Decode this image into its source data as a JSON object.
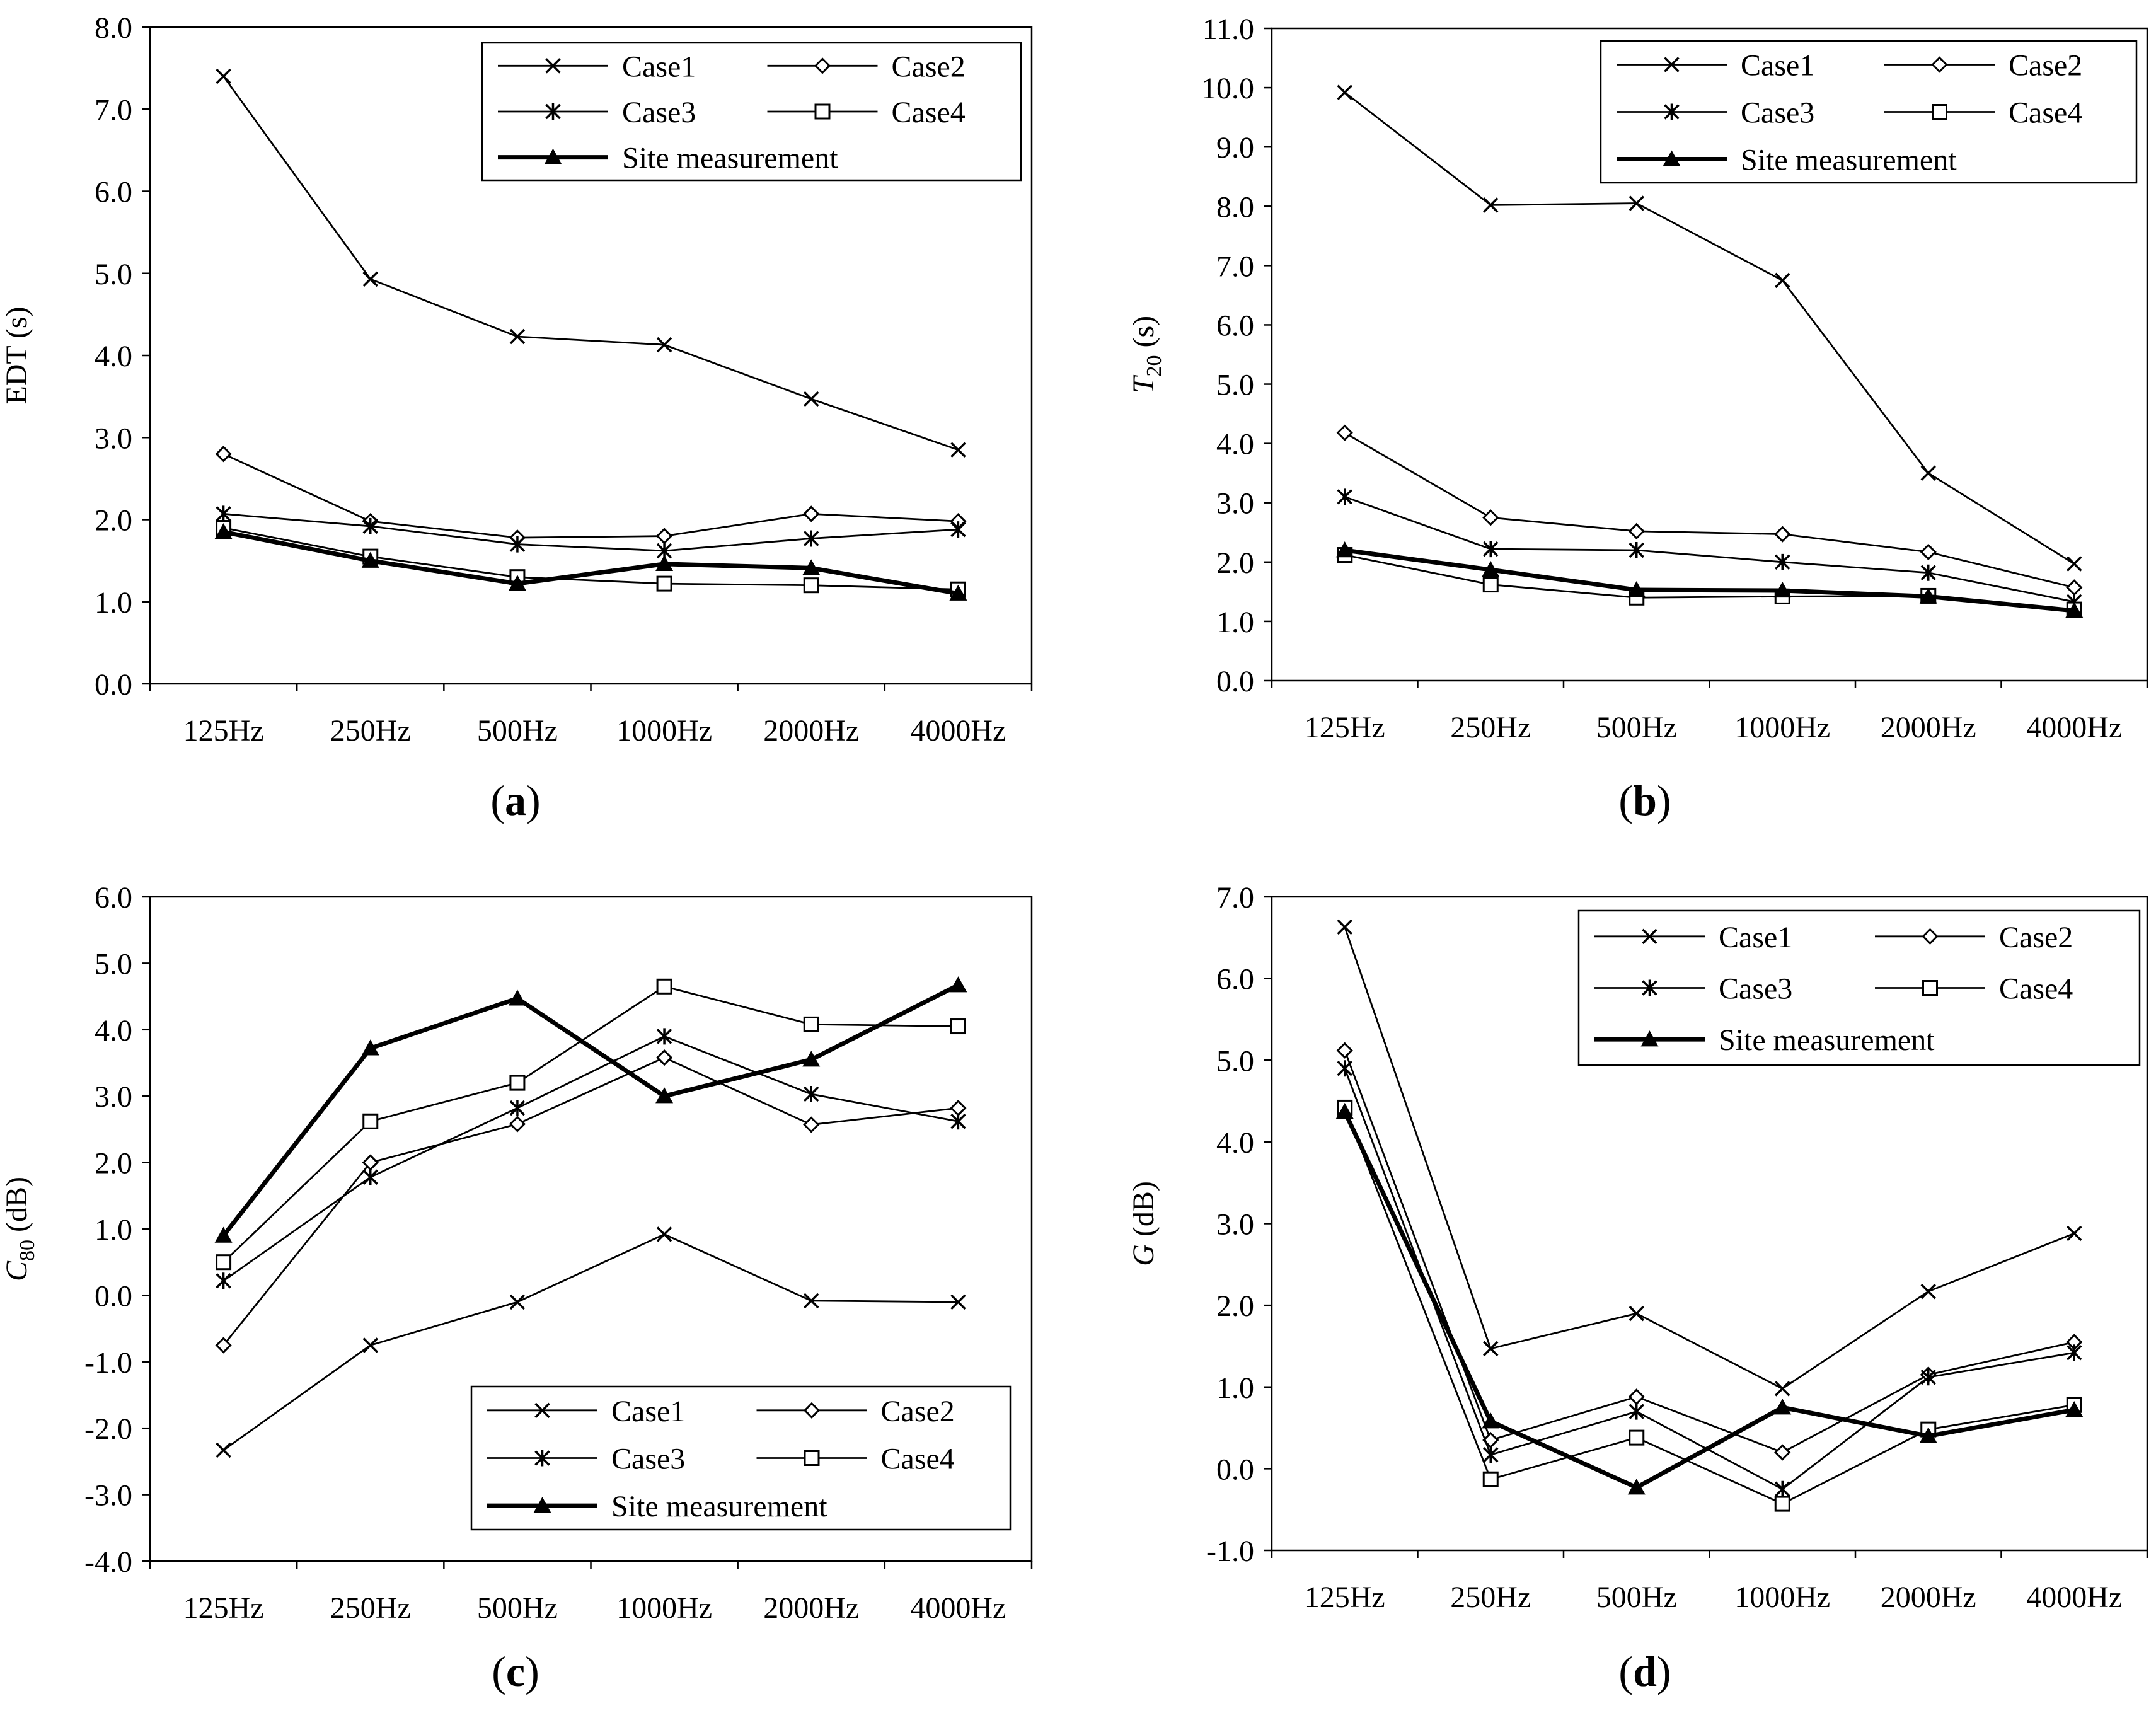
{
  "chart_data": [
    {
      "type": "line",
      "panel_label": "a",
      "categories": [
        "125Hz",
        "250Hz",
        "500Hz",
        "1000Hz",
        "2000Hz",
        "4000Hz"
      ],
      "ylabel": {
        "main": "EDT (s)",
        "sub": ""
      },
      "ylim": [
        0.0,
        8.0
      ],
      "yticks": [
        "0.0",
        "1.0",
        "2.0",
        "3.0",
        "4.0",
        "5.0",
        "6.0",
        "7.0",
        "8.0"
      ],
      "legend_position": "top-right",
      "series": [
        {
          "name": "Case1",
          "marker": "x",
          "values": [
            7.4,
            4.93,
            4.23,
            4.13,
            3.47,
            2.85
          ]
        },
        {
          "name": "Case2",
          "marker": "diamond",
          "values": [
            2.8,
            1.98,
            1.78,
            1.8,
            2.07,
            1.98
          ]
        },
        {
          "name": "Case3",
          "marker": "asterisk",
          "values": [
            2.07,
            1.92,
            1.7,
            1.62,
            1.77,
            1.88
          ]
        },
        {
          "name": "Case4",
          "marker": "square",
          "values": [
            1.9,
            1.55,
            1.3,
            1.22,
            1.2,
            1.15
          ]
        },
        {
          "name": "Site measurement",
          "marker": "triangle",
          "bold": true,
          "values": [
            1.85,
            1.5,
            1.22,
            1.46,
            1.41,
            1.1
          ]
        }
      ]
    },
    {
      "type": "line",
      "panel_label": "b",
      "categories": [
        "125Hz",
        "250Hz",
        "500Hz",
        "1000Hz",
        "2000Hz",
        "4000Hz"
      ],
      "ylabel": {
        "main": "T",
        "sub": "20",
        "suffix": " (s)"
      },
      "ylim": [
        0.0,
        11.0
      ],
      "yticks": [
        "0.0",
        "1.0",
        "2.0",
        "3.0",
        "4.0",
        "5.0",
        "6.0",
        "7.0",
        "8.0",
        "9.0",
        "10.0",
        "11.0"
      ],
      "legend_position": "top-right",
      "series": [
        {
          "name": "Case1",
          "marker": "x",
          "values": [
            9.92,
            8.02,
            8.05,
            6.75,
            3.5,
            1.97
          ]
        },
        {
          "name": "Case2",
          "marker": "diamond",
          "values": [
            4.18,
            2.75,
            2.52,
            2.47,
            2.17,
            1.57
          ]
        },
        {
          "name": "Case3",
          "marker": "asterisk",
          "values": [
            3.1,
            2.22,
            2.2,
            2.0,
            1.82,
            1.33
          ]
        },
        {
          "name": "Case4",
          "marker": "square",
          "values": [
            2.12,
            1.62,
            1.4,
            1.42,
            1.43,
            1.2
          ]
        },
        {
          "name": "Site measurement",
          "marker": "triangle",
          "bold": true,
          "values": [
            2.2,
            1.87,
            1.53,
            1.52,
            1.42,
            1.18
          ]
        }
      ]
    },
    {
      "type": "line",
      "panel_label": "c",
      "categories": [
        "125Hz",
        "250Hz",
        "500Hz",
        "1000Hz",
        "2000Hz",
        "4000Hz"
      ],
      "ylabel": {
        "main": "C",
        "sub": "80",
        "suffix": " (dB)"
      },
      "ylim": [
        -4.0,
        6.0
      ],
      "yticks": [
        "-4.0",
        "-3.0",
        "-2.0",
        "-1.0",
        "0.0",
        "1.0",
        "2.0",
        "3.0",
        "4.0",
        "5.0",
        "6.0"
      ],
      "legend_position": "bottom-right",
      "series": [
        {
          "name": "Case1",
          "marker": "x",
          "values": [
            -2.33,
            -0.75,
            -0.1,
            0.92,
            -0.08,
            -0.1
          ]
        },
        {
          "name": "Case2",
          "marker": "diamond",
          "values": [
            -0.75,
            2.0,
            2.58,
            3.58,
            2.57,
            2.82
          ]
        },
        {
          "name": "Case3",
          "marker": "asterisk",
          "values": [
            0.22,
            1.78,
            2.82,
            3.9,
            3.03,
            2.62
          ]
        },
        {
          "name": "Case4",
          "marker": "square",
          "values": [
            0.5,
            2.62,
            3.2,
            4.65,
            4.08,
            4.05
          ]
        },
        {
          "name": "Site measurement",
          "marker": "triangle",
          "bold": true,
          "values": [
            0.9,
            3.72,
            4.47,
            3.0,
            3.55,
            4.67
          ]
        }
      ]
    },
    {
      "type": "line",
      "panel_label": "d",
      "categories": [
        "125Hz",
        "250Hz",
        "500Hz",
        "1000Hz",
        "2000Hz",
        "4000Hz"
      ],
      "ylabel": {
        "main": "G",
        "sub": "",
        "suffix": " (dB)"
      },
      "ylim": [
        -1.0,
        7.0
      ],
      "yticks": [
        "-1.0",
        "0.0",
        "1.0",
        "2.0",
        "3.0",
        "4.0",
        "5.0",
        "6.0",
        "7.0"
      ],
      "legend_position": "top-right",
      "series": [
        {
          "name": "Case1",
          "marker": "x",
          "values": [
            6.63,
            1.47,
            1.9,
            0.98,
            2.17,
            2.88
          ]
        },
        {
          "name": "Case2",
          "marker": "diamond",
          "values": [
            5.12,
            0.35,
            0.88,
            0.2,
            1.15,
            1.55
          ]
        },
        {
          "name": "Case3",
          "marker": "asterisk",
          "values": [
            4.9,
            0.17,
            0.7,
            -0.25,
            1.12,
            1.42
          ]
        },
        {
          "name": "Case4",
          "marker": "square",
          "values": [
            4.42,
            -0.13,
            0.38,
            -0.43,
            0.48,
            0.78
          ]
        },
        {
          "name": "Site measurement",
          "marker": "triangle",
          "bold": true,
          "values": [
            4.37,
            0.58,
            -0.23,
            0.75,
            0.4,
            0.72
          ]
        }
      ]
    }
  ]
}
